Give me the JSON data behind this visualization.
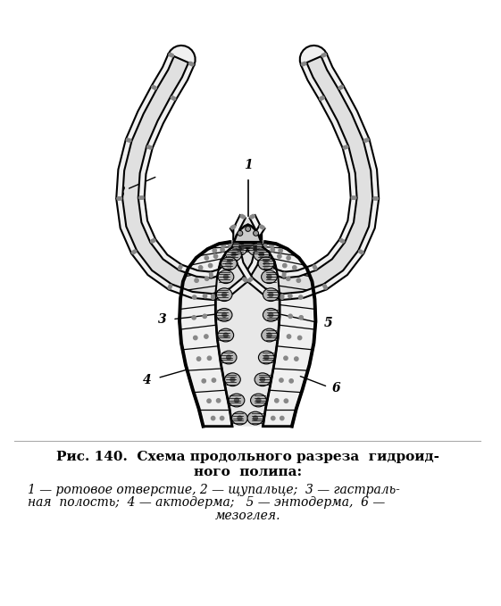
{
  "title_line1": "Рис. 140.  Схема продольного разреза  гидроид-",
  "title_line2": "ного  полипа:",
  "caption_line1": "1 — ротовое отверстие, 2 — щупальце;  3 — гастраль-",
  "caption_line2": "ная  полость;  4 — актодерма;   5 — энтодерма,  6 —",
  "caption_line3": "мезоглея.",
  "bg_color": "#ffffff",
  "ink_color": "#000000",
  "fig_width": 5.61,
  "fig_height": 6.79
}
